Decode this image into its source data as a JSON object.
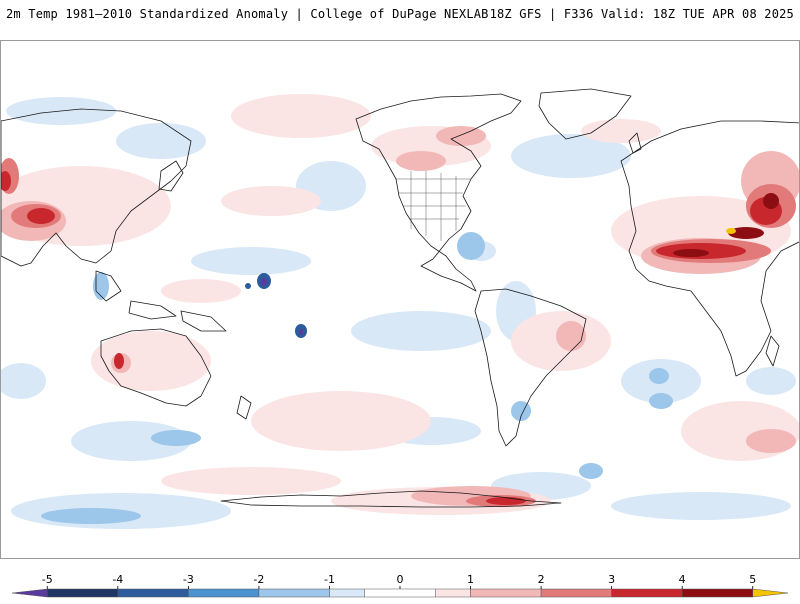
{
  "header": {
    "left_title": "2m Temp 1981–2010 Standardized Anomaly | College of DuPage NEXLAB",
    "right_title": "18Z GFS | F336 Valid: 18Z TUE APR 08 2025"
  },
  "colorbar": {
    "ticks": [
      "-5",
      "-4",
      "-3",
      "-2",
      "-1",
      "0",
      "1",
      "2",
      "3",
      "4",
      "5"
    ],
    "min": -5.5,
    "max": 5.5,
    "bins": [
      {
        "from": -5.5,
        "to": -5,
        "color": "#5b3a9e"
      },
      {
        "from": -5,
        "to": -4,
        "color": "#1f3564"
      },
      {
        "from": -4,
        "to": -3,
        "color": "#2c5c9c"
      },
      {
        "from": -3,
        "to": -2,
        "color": "#4b92cf"
      },
      {
        "from": -2,
        "to": -1,
        "color": "#9cc6ea"
      },
      {
        "from": -1,
        "to": -0.5,
        "color": "#d8e8f7"
      },
      {
        "from": -0.5,
        "to": 0.5,
        "color": "#ffffff"
      },
      {
        "from": 0.5,
        "to": 1,
        "color": "#fbe4e4"
      },
      {
        "from": 1,
        "to": 2,
        "color": "#f2b7b7"
      },
      {
        "from": 2,
        "to": 3,
        "color": "#e27a7a"
      },
      {
        "from": 3,
        "to": 4,
        "color": "#c9272e"
      },
      {
        "from": 4,
        "to": 5,
        "color": "#8c0d12"
      },
      {
        "from": 5,
        "to": 5.5,
        "color": "#f5c400"
      }
    ]
  }
}
